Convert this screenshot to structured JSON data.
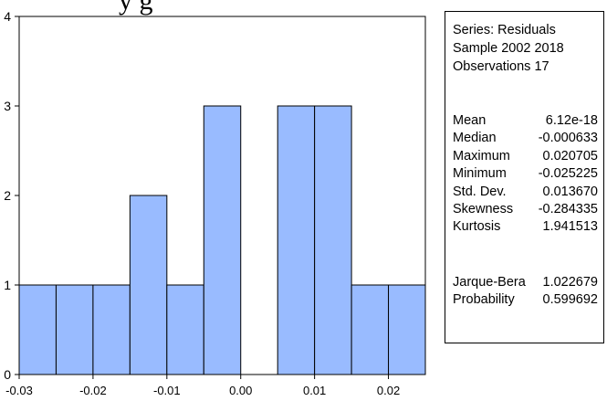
{
  "clipped_title_fragment": "y      g",
  "chart_data": {
    "type": "histogram",
    "bin_edges": [
      -0.03,
      -0.025,
      -0.02,
      -0.015,
      -0.01,
      -0.005,
      0.0,
      0.005,
      0.01,
      0.015,
      0.02,
      0.025
    ],
    "counts": [
      1,
      1,
      1,
      2,
      1,
      3,
      0,
      3,
      3,
      1,
      1
    ],
    "x_ticks": [
      -0.03,
      -0.02,
      -0.01,
      0.0,
      0.01,
      0.02
    ],
    "x_tick_labels": [
      "-0.03",
      "-0.02",
      "-0.01",
      "0.00",
      "0.01",
      "0.02"
    ],
    "y_ticks": [
      0,
      1,
      2,
      3,
      4
    ],
    "y_tick_labels": [
      "0",
      "1",
      "2",
      "3",
      "4"
    ],
    "xlim": [
      -0.03,
      0.025
    ],
    "ylim": [
      0,
      4
    ],
    "bar_color": "#99bbff",
    "edge_color": "#000000"
  },
  "stats": {
    "series": "Series: Residuals",
    "sample": "Sample 2002 2018",
    "observations": "Observations 17",
    "rows": [
      {
        "label": "Mean",
        "value": "6.12e-18"
      },
      {
        "label": "Median",
        "value": "-0.000633"
      },
      {
        "label": "Maximum",
        "value": "0.020705"
      },
      {
        "label": "Minimum",
        "value": "-0.025225"
      },
      {
        "label": "Std. Dev.",
        "value": "0.013670"
      },
      {
        "label": "Skewness",
        "value": "-0.284335"
      },
      {
        "label": "Kurtosis",
        "value": "1.941513"
      }
    ],
    "test_rows": [
      {
        "label": "Jarque-Bera",
        "value": "1.022679"
      },
      {
        "label": "Probability",
        "value": "0.599692"
      }
    ]
  }
}
